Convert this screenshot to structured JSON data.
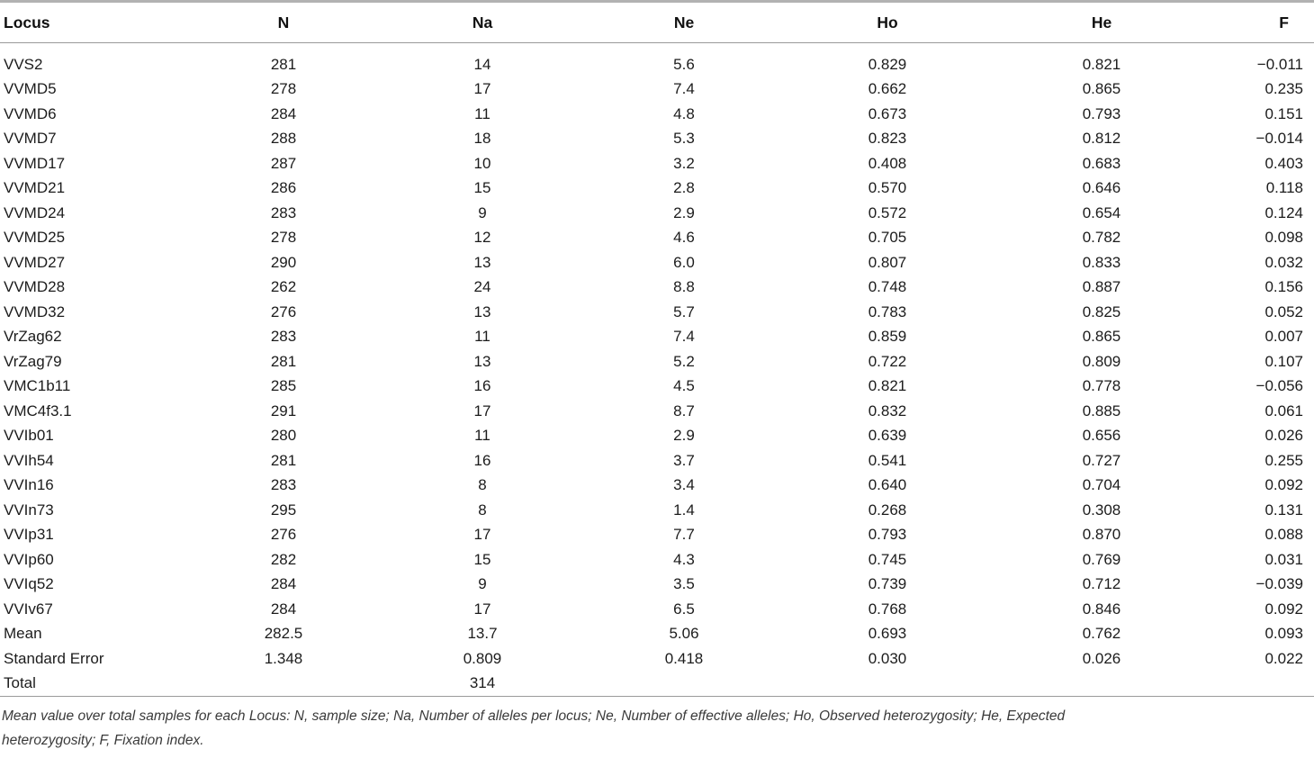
{
  "table": {
    "columns": [
      "Locus",
      "N",
      "Na",
      "Ne",
      "Ho",
      "He",
      "F"
    ],
    "rows": [
      {
        "locus": "VVS2",
        "values": [
          "281",
          "14",
          "5.6",
          "0.829",
          "0.821",
          "−0.011"
        ]
      },
      {
        "locus": "VVMD5",
        "values": [
          "278",
          "17",
          "7.4",
          "0.662",
          "0.865",
          "0.235"
        ]
      },
      {
        "locus": "VVMD6",
        "values": [
          "284",
          "11",
          "4.8",
          "0.673",
          "0.793",
          "0.151"
        ]
      },
      {
        "locus": "VVMD7",
        "values": [
          "288",
          "18",
          "5.3",
          "0.823",
          "0.812",
          "−0.014"
        ]
      },
      {
        "locus": "VVMD17",
        "values": [
          "287",
          "10",
          "3.2",
          "0.408",
          "0.683",
          "0.403"
        ]
      },
      {
        "locus": "VVMD21",
        "values": [
          "286",
          "15",
          "2.8",
          "0.570",
          "0.646",
          "0.118"
        ]
      },
      {
        "locus": "VVMD24",
        "values": [
          "283",
          "9",
          "2.9",
          "0.572",
          "0.654",
          "0.124"
        ]
      },
      {
        "locus": "VVMD25",
        "values": [
          "278",
          "12",
          "4.6",
          "0.705",
          "0.782",
          "0.098"
        ]
      },
      {
        "locus": "VVMD27",
        "values": [
          "290",
          "13",
          "6.0",
          "0.807",
          "0.833",
          "0.032"
        ]
      },
      {
        "locus": "VVMD28",
        "values": [
          "262",
          "24",
          "8.8",
          "0.748",
          "0.887",
          "0.156"
        ]
      },
      {
        "locus": "VVMD32",
        "values": [
          "276",
          "13",
          "5.7",
          "0.783",
          "0.825",
          "0.052"
        ]
      },
      {
        "locus": "VrZag62",
        "values": [
          "283",
          "11",
          "7.4",
          "0.859",
          "0.865",
          "0.007"
        ]
      },
      {
        "locus": "VrZag79",
        "values": [
          "281",
          "13",
          "5.2",
          "0.722",
          "0.809",
          "0.107"
        ]
      },
      {
        "locus": "VMC1b11",
        "values": [
          "285",
          "16",
          "4.5",
          "0.821",
          "0.778",
          "−0.056"
        ]
      },
      {
        "locus": "VMC4f3.1",
        "values": [
          "291",
          "17",
          "8.7",
          "0.832",
          "0.885",
          "0.061"
        ]
      },
      {
        "locus": "VVIb01",
        "values": [
          "280",
          "11",
          "2.9",
          "0.639",
          "0.656",
          "0.026"
        ]
      },
      {
        "locus": "VVIh54",
        "values": [
          "281",
          "16",
          "3.7",
          "0.541",
          "0.727",
          "0.255"
        ]
      },
      {
        "locus": "VVIn16",
        "values": [
          "283",
          "8",
          "3.4",
          "0.640",
          "0.704",
          "0.092"
        ]
      },
      {
        "locus": "VVIn73",
        "values": [
          "295",
          "8",
          "1.4",
          "0.268",
          "0.308",
          "0.131"
        ]
      },
      {
        "locus": "VVIp31",
        "values": [
          "276",
          "17",
          "7.7",
          "0.793",
          "0.870",
          "0.088"
        ]
      },
      {
        "locus": "VVIp60",
        "values": [
          "282",
          "15",
          "4.3",
          "0.745",
          "0.769",
          "0.031"
        ]
      },
      {
        "locus": "VVIq52",
        "values": [
          "284",
          "9",
          "3.5",
          "0.739",
          "0.712",
          "−0.039"
        ]
      },
      {
        "locus": "VVIv67",
        "values": [
          "284",
          "17",
          "6.5",
          "0.768",
          "0.846",
          "0.092"
        ]
      },
      {
        "locus": "Mean",
        "values": [
          "282.5",
          "13.7",
          "5.06",
          "0.693",
          "0.762",
          "0.093"
        ]
      },
      {
        "locus": "Standard Error",
        "values": [
          "1.348",
          "0.809",
          "0.418",
          "0.030",
          "0.026",
          "0.022"
        ]
      },
      {
        "locus": "Total",
        "values": [
          "",
          "314",
          "",
          "",
          "",
          ""
        ]
      }
    ]
  },
  "footnote": {
    "line1": "Mean value over total samples for each Locus: N, sample size; Na, Number of alleles per locus; Ne, Number of effective alleles; Ho, Observed heterozygosity; He, Expected",
    "line2": "heterozygosity; F, Fixation index.",
    "full_text": "Mean value over total samples for each Locus: N, sample size; Na, Number of alleles per locus; Ne, Number of effective alleles; Ho, Observed heterozygosity; He, Expected heterozygosity; F, Fixation index."
  },
  "colors": {
    "text": "#1c1c1c",
    "rule_top": "#b2b2b2",
    "rule": "#9a9a9a",
    "footnote_text": "#3a3a3a",
    "background": "#ffffff"
  }
}
